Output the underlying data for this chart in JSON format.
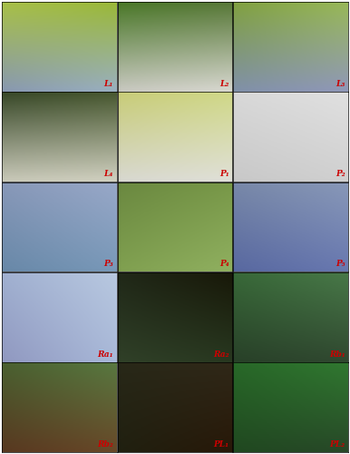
{
  "grid_rows": 5,
  "grid_cols": 3,
  "figsize": [
    3.86,
    5.0
  ],
  "dpi": 100,
  "background_color": "#ffffff",
  "labels": [
    "L₁",
    "L₂",
    "L₃",
    "L₄",
    "P₁",
    "P₂",
    "P₃",
    "P₄",
    "P₅",
    "Ra₁",
    "Ra₂",
    "Rb₁",
    "Rb₂",
    "PL₁",
    "PL₂"
  ],
  "label_color": "#cc0000",
  "label_fontsize": 6.5,
  "border_color": "#000000",
  "border_width": 0.5,
  "cell_colors": [
    "#7ab830",
    "#4a7828",
    "#80a848",
    "#384828",
    "#c8cc80",
    "#d8d8d0",
    "#8898b0",
    "#6a9040",
    "#8090a8",
    "#a0b0c8",
    "#202818",
    "#386038",
    "#4a6830",
    "#283818",
    "#306828"
  ],
  "cell_gradients": [
    [
      "#a0c858",
      "#b8d878",
      "#8898a8",
      "#a8b8c0"
    ],
    [
      "#3a6030",
      "#587840",
      "#c4c870",
      "#d0c868"
    ],
    [
      "#d0d8c8",
      "#e0e0d8",
      "#88a8c8",
      "#a0b8d0"
    ],
    [
      "#9098b8",
      "#b0bccc",
      "#182010",
      "#202818"
    ],
    [
      "#304828",
      "#485c30",
      "#202010",
      "#181808"
    ],
    [
      "#3a5828",
      "#506040",
      "#183018",
      "#204020"
    ],
    [
      "#4a6030",
      "#587848",
      "#284020",
      "#384828"
    ]
  ]
}
